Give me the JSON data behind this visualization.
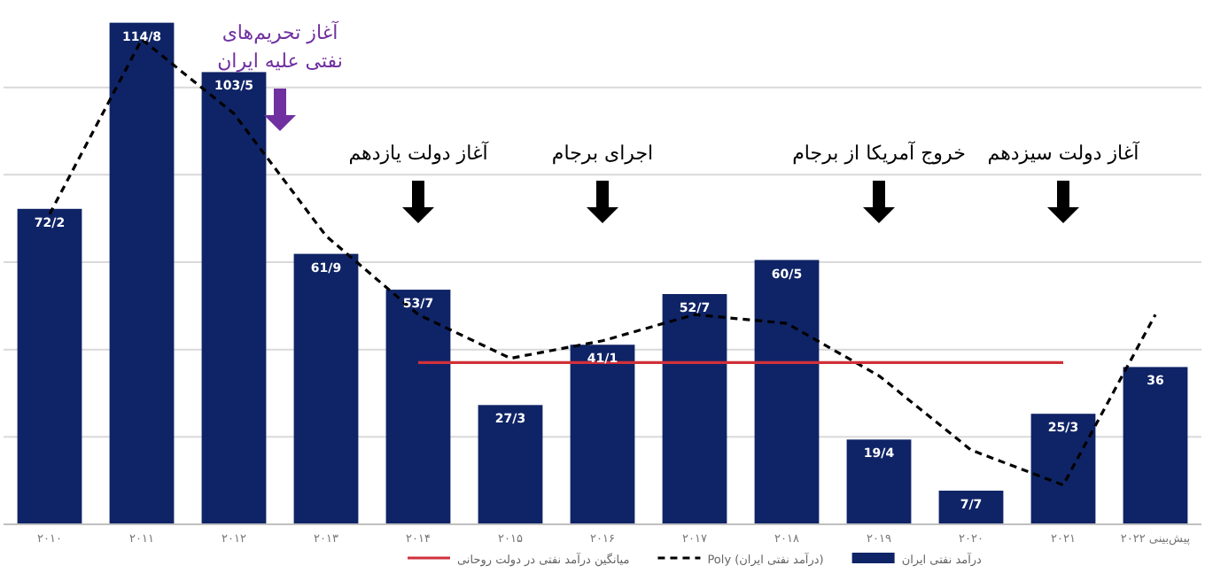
{
  "chart_data": {
    "type": "bar",
    "categories": [
      "۲۰۱۰",
      "۲۰۱۱",
      "۲۰۱۲",
      "۲۰۱۳",
      "۲۰۱۴",
      "۲۰۱۵",
      "۲۰۱۶",
      "۲۰۱۷",
      "۲۰۱۸",
      "۲۰۱۹",
      "۲۰۲۰",
      "۲۰۲۱",
      "پیش‌بینی ۲۰۲۲"
    ],
    "series": [
      {
        "name": "درآمد نفتی ایران",
        "color": "#0f2466",
        "values": [
          72.2,
          114.8,
          103.5,
          61.9,
          53.7,
          27.3,
          41.1,
          52.7,
          60.5,
          19.4,
          7.7,
          25.3,
          36
        ],
        "value_labels": [
          "72/2",
          "114/8",
          "103/5",
          "61/9",
          "53/7",
          "27/3",
          "41/1",
          "52/7",
          "60/5",
          "19/4",
          "7/7",
          "25/3",
          "36"
        ]
      },
      {
        "name": "Poly (درآمد نفتی ایران)",
        "type": "line",
        "color": "#000000",
        "line_style": "dashed",
        "values": [
          71,
          111,
          94,
          66,
          48,
          38,
          42,
          48,
          46,
          34,
          17,
          9,
          48
        ]
      },
      {
        "name": "میانگین درآمد نفتی در دولت روحانی",
        "type": "line",
        "color": "#d0313a",
        "line_style": "solid",
        "values": [
          null,
          null,
          null,
          null,
          37,
          37,
          37,
          37,
          37,
          37,
          37,
          37,
          null
        ]
      }
    ],
    "annotations": [
      "آغاز تحریم‌های نفتی علیه ایران",
      "آغاز دولت یازدهم",
      "اجرای برجام",
      "خروج آمریکا از برجام",
      "آغاز دولت سیزدهم"
    ],
    "yticks": [
      {
        "value": 20,
        "label": null
      },
      {
        "value": 40,
        "label": null
      },
      {
        "value": 60,
        "label": null
      },
      {
        "value": 80,
        "label": null
      },
      {
        "value": 100,
        "label": null
      }
    ],
    "grid": "y",
    "tick_labels": "x",
    "legend": "bottom"
  }
}
